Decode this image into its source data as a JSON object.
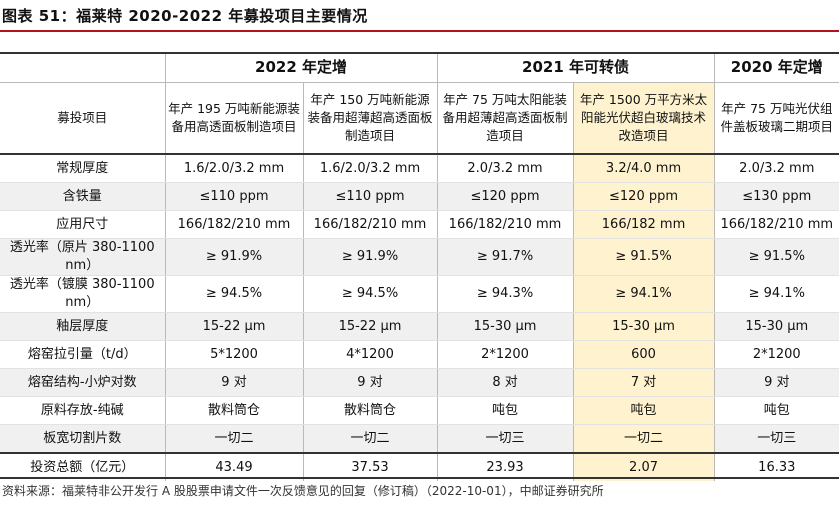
{
  "title": "图表 51：福莱特 2020-2022 年募投项目主要情况",
  "groups": [
    "2022 年定增",
    "2021 年可转债",
    "2020 年定增"
  ],
  "row_header_label": "募投项目",
  "projects": [
    "年产 195 万吨新能源装备用高透面板制造项目",
    "年产 150 万吨新能源装备用超薄超高透面板制造项目",
    "年产 75 万吨太阳能装备用超薄超高透面板制造项目",
    "年产 1500 万平方米太阳能光伏超白玻璃技术改造项目",
    "年产 75 万吨光伏组件盖板玻璃二期项目"
  ],
  "rows": [
    {
      "label": "常规厚度",
      "values": [
        "1.6/2.0/3.2 mm",
        "1.6/2.0/3.2 mm",
        "2.0/3.2 mm",
        "3.2/4.0 mm",
        "2.0/3.2 mm"
      ]
    },
    {
      "label": "含铁量",
      "values": [
        "≤110 ppm",
        "≤110 ppm",
        "≤120 ppm",
        "≤120 ppm",
        "≤130 ppm"
      ]
    },
    {
      "label": "应用尺寸",
      "values": [
        "166/182/210 mm",
        "166/182/210 mm",
        "166/182/210 mm",
        "166/182 mm",
        "166/182/210 mm"
      ]
    },
    {
      "label": "透光率（原片 380-1100 nm）",
      "values": [
        "≥ 91.9%",
        "≥ 91.9%",
        "≥ 91.7%",
        "≥ 91.5%",
        "≥ 91.5%"
      ]
    },
    {
      "label": "透光率（镀膜 380-1100 nm）",
      "values": [
        "≥ 94.5%",
        "≥ 94.5%",
        "≥ 94.3%",
        "≥ 94.1%",
        "≥ 94.1%"
      ]
    },
    {
      "label": "釉层厚度",
      "values": [
        "15-22 µm",
        "15-22 µm",
        "15-30 µm",
        "15-30 µm",
        "15-30 µm"
      ]
    },
    {
      "label": "熔窑拉引量（t/d）",
      "values": [
        "5*1200",
        "4*1200",
        "2*1200",
        "600",
        "2*1200"
      ]
    },
    {
      "label": "熔窑结构-小炉对数",
      "values": [
        "9 对",
        "9 对",
        "8 对",
        "7 对",
        "9 对"
      ]
    },
    {
      "label": "原料存放-纯碱",
      "values": [
        "散料筒仓",
        "散料筒仓",
        "吨包",
        "吨包",
        "吨包"
      ]
    },
    {
      "label": "板宽切割片数",
      "values": [
        "一切二",
        "一切二",
        "一切三",
        "一切二",
        "一切三"
      ]
    }
  ],
  "total": {
    "label": "投资总额（亿元）",
    "values": [
      "43.49",
      "37.53",
      "23.93",
      "2.07",
      "16.33"
    ]
  },
  "source": "资料来源：福莱特非公开发行 A 股股票申请文件一次反馈意见的回复（修订稿）（2022-10-01），中邮证券研究所",
  "colors": {
    "accent_rule": "#b5121b",
    "highlight_column": "#fff3cf",
    "stripe": "#f0f0f0"
  }
}
